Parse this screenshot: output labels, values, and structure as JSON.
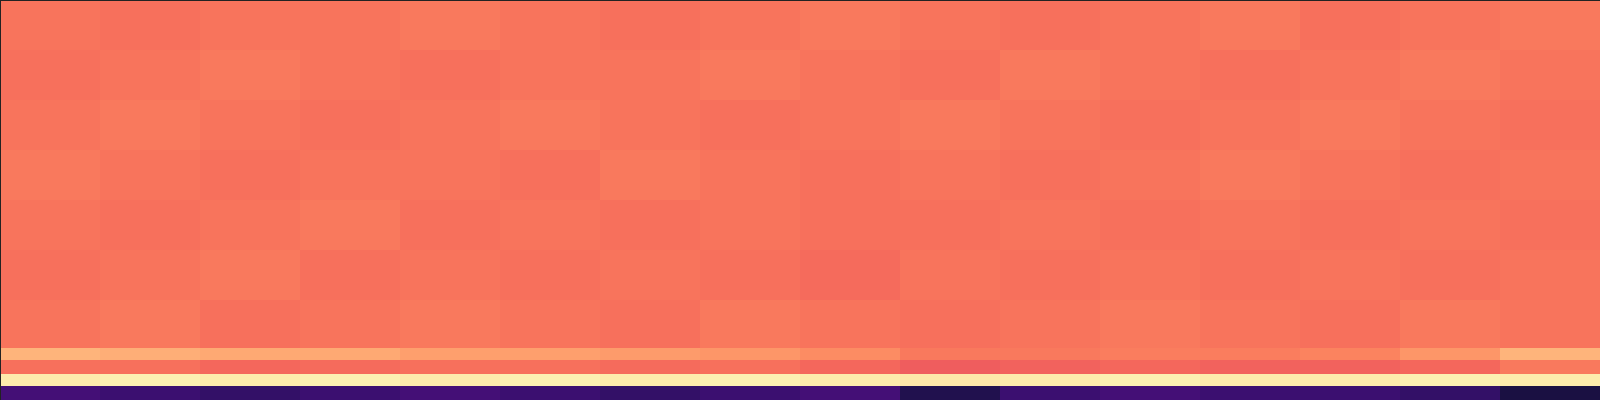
{
  "chart_data": {
    "type": "heatmap",
    "tick_labels": false,
    "xlim": [
      0,
      1600
    ],
    "ylim": [
      0,
      400
    ],
    "x_edges": [
      0,
      100,
      200,
      300,
      400,
      500,
      600,
      700,
      800,
      900,
      1000,
      1100,
      1200,
      1300,
      1400,
      1500,
      1600
    ],
    "y_edges": [
      0,
      14,
      26,
      40,
      52,
      100,
      150,
      200,
      250,
      300,
      350,
      400
    ],
    "color_range": [
      0,
      1
    ],
    "color": "magma",
    "cells": [
      [
        0.22,
        0.2,
        0.18,
        0.2,
        0.22,
        0.2,
        0.18,
        0.2,
        0.22,
        0.14,
        0.2,
        0.22,
        0.2,
        0.2,
        0.18,
        0.12
      ],
      [
        0.96,
        0.97,
        0.96,
        0.97,
        0.96,
        0.97,
        0.96,
        0.97,
        0.96,
        0.95,
        0.96,
        0.97,
        0.96,
        0.96,
        0.97,
        0.96
      ],
      [
        0.7,
        0.7,
        0.68,
        0.69,
        0.7,
        0.7,
        0.69,
        0.7,
        0.68,
        0.66,
        0.67,
        0.68,
        0.67,
        0.67,
        0.68,
        0.72
      ],
      [
        0.84,
        0.83,
        0.82,
        0.82,
        0.8,
        0.8,
        0.79,
        0.78,
        0.76,
        0.72,
        0.72,
        0.73,
        0.73,
        0.74,
        0.78,
        0.84
      ],
      [
        0.71,
        0.72,
        0.7,
        0.71,
        0.72,
        0.71,
        0.7,
        0.72,
        0.71,
        0.7,
        0.71,
        0.72,
        0.71,
        0.7,
        0.72,
        0.71
      ],
      [
        0.7,
        0.71,
        0.72,
        0.7,
        0.71,
        0.7,
        0.71,
        0.7,
        0.69,
        0.71,
        0.7,
        0.71,
        0.7,
        0.71,
        0.7,
        0.71
      ],
      [
        0.71,
        0.7,
        0.71,
        0.72,
        0.7,
        0.71,
        0.7,
        0.71,
        0.7,
        0.7,
        0.71,
        0.7,
        0.71,
        0.7,
        0.71,
        0.7
      ],
      [
        0.72,
        0.71,
        0.7,
        0.71,
        0.71,
        0.7,
        0.72,
        0.71,
        0.7,
        0.71,
        0.7,
        0.71,
        0.72,
        0.71,
        0.7,
        0.71
      ],
      [
        0.71,
        0.72,
        0.71,
        0.7,
        0.71,
        0.72,
        0.71,
        0.7,
        0.71,
        0.72,
        0.71,
        0.7,
        0.71,
        0.72,
        0.71,
        0.7
      ],
      [
        0.7,
        0.71,
        0.72,
        0.71,
        0.7,
        0.71,
        0.71,
        0.72,
        0.71,
        0.7,
        0.72,
        0.71,
        0.7,
        0.71,
        0.72,
        0.71
      ],
      [
        0.71,
        0.7,
        0.71,
        0.71,
        0.72,
        0.71,
        0.7,
        0.71,
        0.72,
        0.71,
        0.7,
        0.71,
        0.72,
        0.7,
        0.71,
        0.72
      ]
    ]
  }
}
